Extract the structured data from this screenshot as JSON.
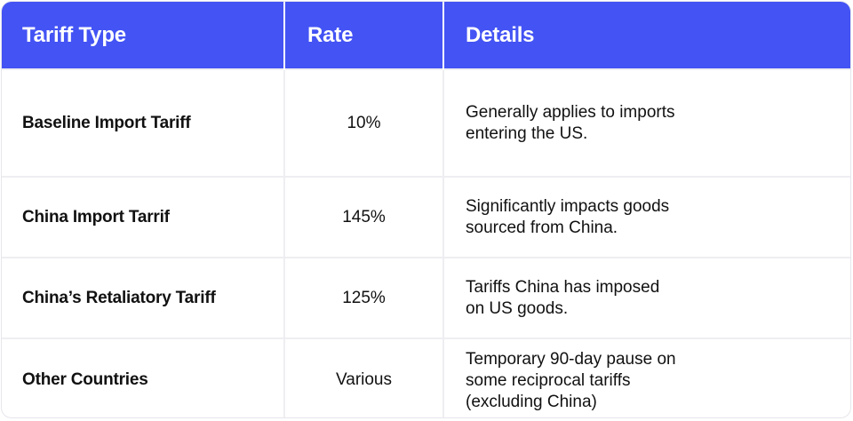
{
  "table": {
    "headers": [
      "Tariff Type",
      "Rate",
      "Details"
    ],
    "rows": [
      {
        "type": "Baseline Import Tariff",
        "rate": "10%",
        "details": [
          "Generally applies to imports",
          "entering the US."
        ]
      },
      {
        "type": "China Import Tarrif",
        "rate": "145%",
        "details": [
          "Significantly impacts goods",
          "sourced from China."
        ]
      },
      {
        "type": "China’s Retaliatory Tariff",
        "rate": "125%",
        "details": [
          "Tariffs China has imposed",
          "on US goods."
        ]
      },
      {
        "type": "Other Countries",
        "rate": "Various",
        "details": [
          "Temporary 90-day pause on",
          "some reciprocal tariffs",
          "(excluding China)"
        ]
      }
    ]
  },
  "colors": {
    "header_bg": "#4353f4",
    "header_text": "#ffffff",
    "body_text": "#111111",
    "grid_line": "#eeeef2"
  }
}
